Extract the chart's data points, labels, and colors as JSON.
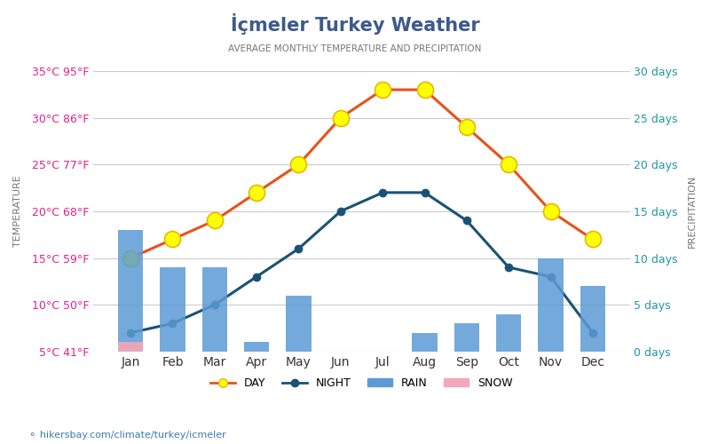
{
  "title": "İçmeler Turkey Weather",
  "subtitle": "AVERAGE MONTHLY TEMPERATURE AND PRECIPITATION",
  "months": [
    "Jan",
    "Feb",
    "Mar",
    "Apr",
    "May",
    "Jun",
    "Jul",
    "Aug",
    "Sep",
    "Oct",
    "Nov",
    "Dec"
  ],
  "day_temp": [
    15,
    17,
    19,
    22,
    25,
    30,
    33,
    33,
    29,
    25,
    20,
    17
  ],
  "night_temp": [
    7,
    8,
    10,
    13,
    16,
    20,
    22,
    22,
    19,
    14,
    13,
    7
  ],
  "rain_days": [
    13,
    9,
    9,
    1,
    6,
    0,
    0,
    2,
    3,
    4,
    10,
    7
  ],
  "snow_days": [
    1,
    0,
    0,
    0,
    0,
    0,
    0,
    0,
    0,
    0,
    0,
    0
  ],
  "temp_ylim": [
    5,
    35
  ],
  "temp_yticks": [
    5,
    10,
    15,
    20,
    25,
    30,
    35
  ],
  "temp_ytick_labels": [
    "5°C 41°F",
    "10°C 50°F",
    "15°C 59°F",
    "20°C 68°F",
    "25°C 77°F",
    "30°C 86°F",
    "35°C 95°F"
  ],
  "precip_ylim": [
    0,
    30
  ],
  "precip_yticks": [
    0,
    5,
    10,
    15,
    20,
    25,
    30
  ],
  "precip_ytick_labels": [
    "0 days",
    "5 days",
    "10 days",
    "15 days",
    "20 days",
    "25 days",
    "30 days"
  ],
  "day_color": "#e8521a",
  "night_color": "#1a5276",
  "rain_color": "#5b9bd5",
  "snow_color": "#f4a7b9",
  "left_label_color": "#e91e8c",
  "right_label_color": "#2196a6",
  "title_color": "#3d5a8a",
  "subtitle_color": "#777777",
  "grid_color": "#cccccc",
  "background_color": "#ffffff",
  "watermark": "hikersbay.com/climate/turkey/icmeler",
  "watermark_color": "#3d7ab5"
}
